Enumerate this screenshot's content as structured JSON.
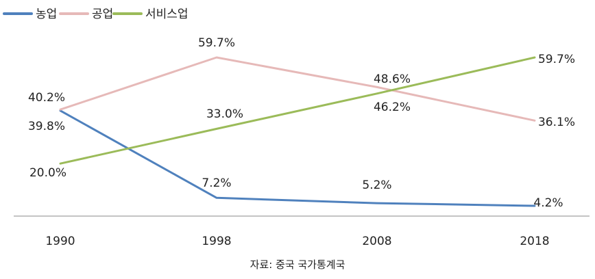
{
  "chart_data": {
    "type": "line",
    "categories": [
      "1990",
      "1998",
      "2008",
      "2018"
    ],
    "ylim": [
      0,
      65
    ],
    "grid": false,
    "legend_position": "top-left",
    "series": [
      {
        "name": "농업",
        "color": "#4f81bd",
        "values": [
          39.8,
          7.2,
          5.2,
          4.2
        ],
        "labels": [
          "",
          "7.2%",
          "5.2%",
          "4.2%"
        ]
      },
      {
        "name": "공업",
        "color": "#e6b9b8",
        "values": [
          40.2,
          59.7,
          48.6,
          36.1
        ],
        "labels": [
          "40.2%",
          "59.7%",
          "48.6%",
          "36.1%"
        ]
      },
      {
        "name": "서비스업",
        "color": "#9bbb59",
        "values": [
          20.0,
          33.0,
          46.2,
          59.7
        ],
        "labels": [
          "20.0%",
          "33.0%",
          "46.2%",
          "59.7%"
        ]
      }
    ],
    "extra_labels": [
      {
        "text": "39.8%"
      }
    ],
    "source": "자료: 중국 국가통계국"
  }
}
